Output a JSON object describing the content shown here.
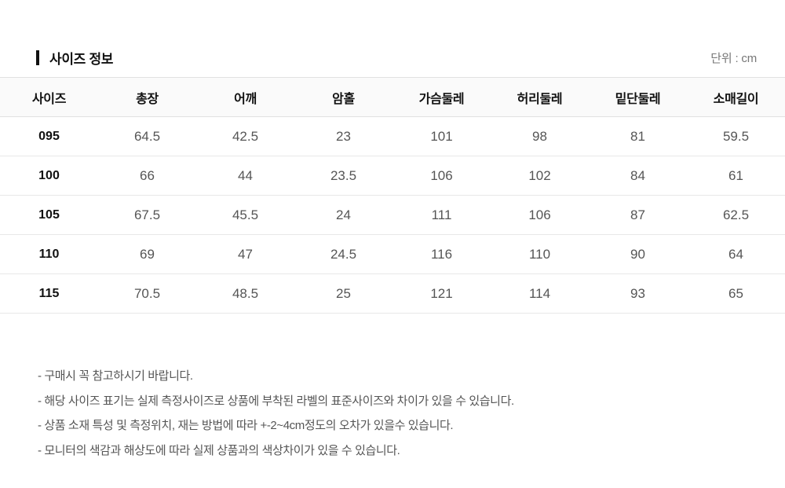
{
  "page": {
    "title": "사이즈 정보",
    "unit_label": "단위 : cm"
  },
  "table": {
    "columns": [
      "사이즈",
      "총장",
      "어깨",
      "암홀",
      "가슴둘레",
      "허리둘레",
      "밑단둘레",
      "소매길이"
    ],
    "rows": [
      {
        "size": "095",
        "values": [
          "64.5",
          "42.5",
          "23",
          "101",
          "98",
          "81",
          "59.5"
        ]
      },
      {
        "size": "100",
        "values": [
          "66",
          "44",
          "23.5",
          "106",
          "102",
          "84",
          "61"
        ]
      },
      {
        "size": "105",
        "values": [
          "67.5",
          "45.5",
          "24",
          "111",
          "106",
          "87",
          "62.5"
        ]
      },
      {
        "size": "110",
        "values": [
          "69",
          "47",
          "24.5",
          "116",
          "110",
          "90",
          "64"
        ]
      },
      {
        "size": "115",
        "values": [
          "70.5",
          "48.5",
          "25",
          "121",
          "114",
          "93",
          "65"
        ]
      }
    ]
  },
  "notes": [
    "- 구매시 꼭 참고하시기 바랍니다.",
    "- 해당 사이즈 표기는 실제 측정사이즈로 상품에 부착된 라벨의 표준사이즈와 차이가 있을 수 있습니다.",
    "- 상품 소재 특성 및 측정위치, 재는 방법에 따라 +-2~4cm정도의 오차가 있을수 있습니다.",
    "- 모니터의 색감과 해상도에 따라 실제 상품과의 색상차이가 있을 수 있습니다."
  ],
  "colors": {
    "text_primary": "#111111",
    "text_secondary": "#555555",
    "text_muted": "#777777",
    "header_bg": "#fafafa",
    "border": "#e1e1e1"
  }
}
